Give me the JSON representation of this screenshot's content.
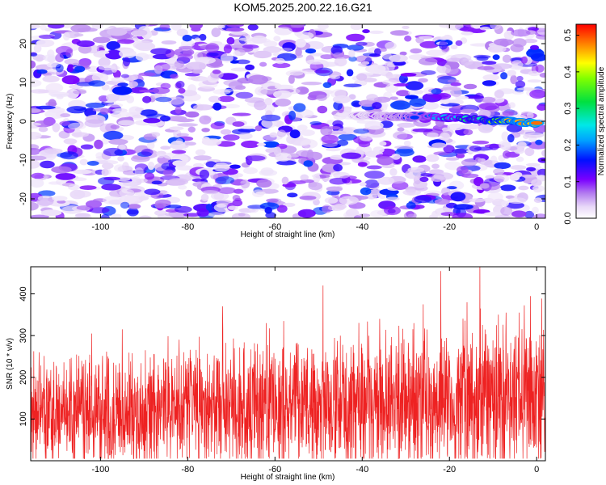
{
  "title": "KOM5.2025.200.22.16.G21",
  "colors": {
    "snr_line": "#ee2222",
    "frame": "#000000"
  },
  "chart_data": [
    {
      "type": "heatmap",
      "xlabel": "Height of straight line (km)",
      "ylabel": "Frequency (Hz)",
      "xlim": [
        -116,
        2
      ],
      "ylim": [
        -25,
        25
      ],
      "x_ticks": [
        -100,
        -80,
        -60,
        -40,
        -20,
        0
      ],
      "x_tick_labels": [
        "-100",
        "-80",
        "-60",
        "-40",
        "-20",
        "0"
      ],
      "y_ticks": [
        -20,
        -10,
        0,
        10,
        20
      ],
      "y_tick_labels": [
        "-20",
        "-10",
        "0",
        "10",
        "20"
      ],
      "colorbar": {
        "label": "Normalized spectral amplitude",
        "range": [
          0,
          0.53
        ],
        "ticks": [
          0.0,
          0.1,
          0.2,
          0.3,
          0.4,
          0.5
        ],
        "tick_labels": [
          "0.0",
          "0.1",
          "0.2",
          "0.3",
          "0.4",
          "0.5"
        ],
        "colormap": "rainbow (white-purple-blue-cyan-green-yellow-red)"
      },
      "background_level": 0.06,
      "features": [
        {
          "x_start": -28,
          "x_end": 0,
          "freq_start": 1.5,
          "freq_end": -0.5,
          "peak_amplitude": 0.53
        },
        {
          "x_start": -42,
          "x_end": -28,
          "freq_start": 1.5,
          "freq_end": 1.0,
          "peak_amplitude": 0.18
        }
      ]
    },
    {
      "type": "line",
      "xlabel": "Height of straight line (km)",
      "ylabel": "SNR (10 * v/v)",
      "xlim": [
        -116,
        2
      ],
      "ylim": [
        0,
        465
      ],
      "x_ticks": [
        -100,
        -80,
        -60,
        -40,
        -20,
        0
      ],
      "x_tick_labels": [
        "-100",
        "-80",
        "-60",
        "-40",
        "-20",
        "0"
      ],
      "y_ticks": [
        100,
        200,
        300,
        400
      ],
      "y_tick_labels": [
        "100",
        "200",
        "300",
        "400"
      ],
      "series_note": "dense noisy SNR trace, mean rising from ~110 at -116 km to ~150 near 0 km",
      "mean_start": 110,
      "mean_end": 150,
      "peaks": [
        {
          "x": -102,
          "y": 305
        },
        {
          "x": -95,
          "y": 315
        },
        {
          "x": -82,
          "y": 290
        },
        {
          "x": -72,
          "y": 370
        },
        {
          "x": -62,
          "y": 330
        },
        {
          "x": -58,
          "y": 335
        },
        {
          "x": -49,
          "y": 420
        },
        {
          "x": -45,
          "y": 300
        },
        {
          "x": -36,
          "y": 340
        },
        {
          "x": -26,
          "y": 375
        },
        {
          "x": -22,
          "y": 455
        },
        {
          "x": -16,
          "y": 380
        },
        {
          "x": -13,
          "y": 470
        },
        {
          "x": -7,
          "y": 355
        },
        {
          "x": -4,
          "y": 355
        }
      ]
    }
  ]
}
